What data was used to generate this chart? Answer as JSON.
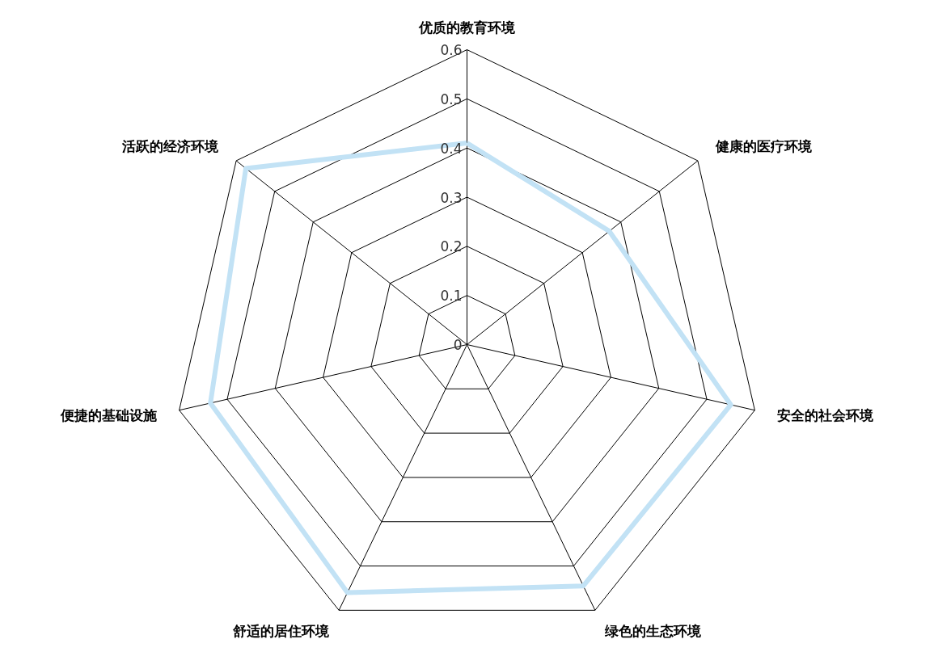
{
  "chart_data": {
    "type": "radar",
    "categories": [
      "优质的教育环境",
      "健康的医疗环境",
      "安全的社会环境",
      "绿色的生态环境",
      "舒适的居住环境",
      "便捷的基础设施",
      "活跃的经济环境"
    ],
    "series": [
      {
        "color": "#c2e2f5",
        "values": [
          0.41,
          0.37,
          0.55,
          0.545,
          0.56,
          0.535,
          0.575
        ]
      }
    ],
    "ylim": [
      0,
      0.6
    ],
    "yticks": [
      0,
      0.1,
      0.2,
      0.3,
      0.4,
      0.5,
      0.6
    ],
    "grid": true,
    "marker": "none",
    "line_style": "solid"
  }
}
